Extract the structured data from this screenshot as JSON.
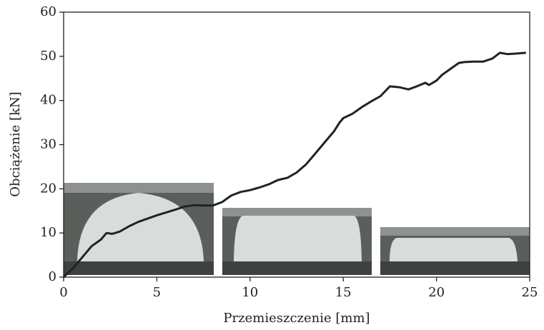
{
  "chart_data": {
    "type": "line",
    "x_label": "Przemieszczenie [mm]",
    "y_label": "Obciążenie [kN]",
    "xlim": [
      0,
      25
    ],
    "xticks": [
      0,
      5,
      10,
      15,
      20,
      25
    ],
    "ylim": [
      0,
      60
    ],
    "yticks": [
      0,
      10,
      20,
      30,
      40,
      50,
      60
    ],
    "series": [
      {
        "color": "#1b2622",
        "x": [
          0,
          0.5,
          1,
          1.5,
          2,
          2.3,
          2.6,
          3,
          3.5,
          4,
          5,
          6,
          6.5,
          7,
          7.5,
          8,
          8.5,
          9,
          9.5,
          10,
          10.5,
          11,
          11.5,
          12,
          12.5,
          13,
          13.5,
          14,
          14.5,
          14.8,
          15,
          15.5,
          16,
          16.5,
          17,
          17.5,
          18,
          18.5,
          19,
          19.4,
          19.6,
          20,
          20.3,
          20.8,
          21.2,
          21.5,
          22,
          22.5,
          23,
          23.4,
          23.8,
          24.2,
          24.8
        ],
        "values": [
          0,
          2,
          4.5,
          7,
          8.5,
          10,
          9.8,
          10.3,
          11.5,
          12.5,
          14,
          15.3,
          16,
          16.3,
          16.2,
          16.2,
          17,
          18.5,
          19.3,
          19.7,
          20.3,
          21,
          22,
          22.5,
          23.7,
          25.5,
          28,
          30.5,
          33,
          35,
          36,
          37,
          38.5,
          39.8,
          41,
          43.2,
          43,
          42.5,
          43.3,
          44,
          43.5,
          44.5,
          45.8,
          47.3,
          48.5,
          48.7,
          48.8,
          48.8,
          49.5,
          50.8,
          50.5,
          50.6,
          50.8
        ]
      }
    ]
  }
}
